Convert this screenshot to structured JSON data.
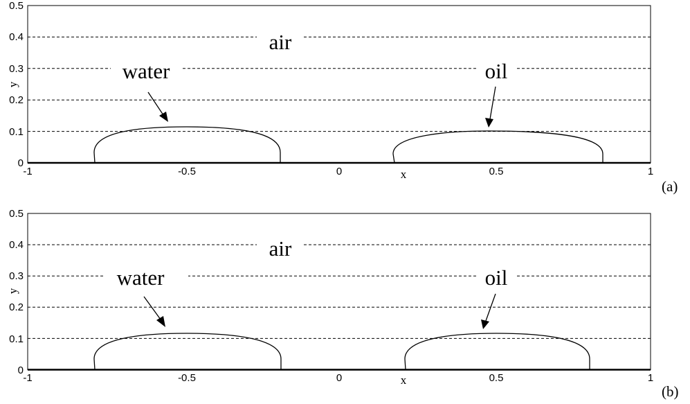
{
  "figure": {
    "panels": [
      {
        "tag": "(a)",
        "xlabel": "x",
        "ylabel": "y",
        "xticks": [
          "-1",
          "-0.5",
          "0",
          "0.5",
          "1"
        ],
        "yticks": [
          "0",
          "0.1",
          "0.2",
          "0.3",
          "0.4",
          "0.5"
        ],
        "annotations": {
          "air": "air",
          "water": "water",
          "oil": "oil"
        }
      },
      {
        "tag": "(b)",
        "xlabel": "x",
        "ylabel": "y",
        "xticks": [
          "-1",
          "-0.5",
          "0",
          "0.5",
          "1"
        ],
        "yticks": [
          "0",
          "0.1",
          "0.2",
          "0.3",
          "0.4",
          "0.5"
        ],
        "annotations": {
          "air": "air",
          "water": "water",
          "oil": "oil"
        }
      }
    ]
  },
  "chart_data": [
    {
      "type": "line",
      "xlim": [
        -1,
        1
      ],
      "ylim": [
        0,
        0.5
      ],
      "grid": "dashed horizontal at 0.1 intervals",
      "series": [
        {
          "name": "water",
          "x_left": -0.8,
          "x_right": -0.21,
          "x_apex": -0.5,
          "height": 0.117
        },
        {
          "name": "oil",
          "x_left": 0.34,
          "x_right": 0.84,
          "x_apex": 0.53,
          "height": 0.101
        }
      ]
    },
    {
      "type": "line",
      "xlim": [
        -1,
        1
      ],
      "ylim": [
        0,
        0.5
      ],
      "grid": "dashed horizontal at 0.1 intervals",
      "series": [
        {
          "name": "water",
          "x_left": -0.8,
          "x_right": -0.2,
          "x_apex": -0.5,
          "height": 0.117
        },
        {
          "name": "oil",
          "x_left": 0.2,
          "x_right": 0.8,
          "x_apex": 0.5,
          "height": 0.117
        }
      ]
    }
  ]
}
